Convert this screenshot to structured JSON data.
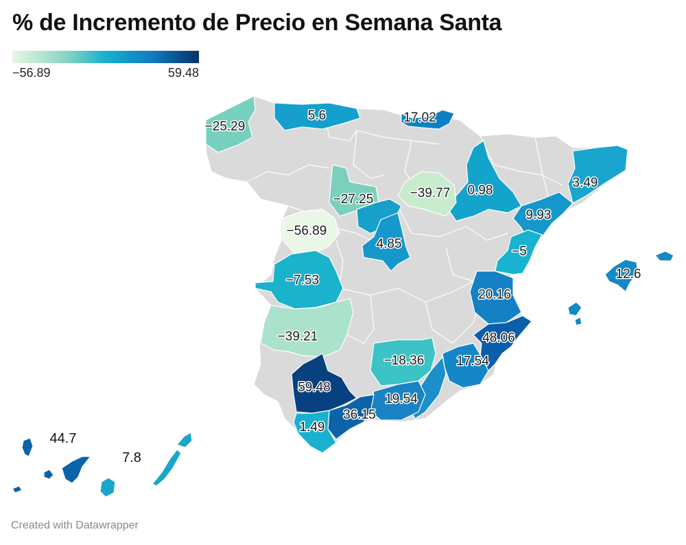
{
  "title": "% de Incremento de Precio en Semana Santa",
  "legend": {
    "min_label": "−56.89",
    "max_label": "59.48",
    "min": -56.89,
    "max": 59.48,
    "gradient": [
      "#e9f6e4",
      "#82d4c0",
      "#17b0cd",
      "#0f7cbf",
      "#08306b"
    ]
  },
  "footer": "Created with Datawrapper",
  "colors": {
    "no_data": "#dadada",
    "border": "#ffffff"
  },
  "regions": [
    {
      "id": "lugo-coruna",
      "label": "−25.29",
      "value": -25.29
    },
    {
      "id": "asturias",
      "label": "5.6",
      "value": 5.6
    },
    {
      "id": "gipuzkoa",
      "label": "17.02",
      "value": 17.02
    },
    {
      "id": "zaragoza",
      "label": "0.98",
      "value": 0.98
    },
    {
      "id": "barcelona",
      "label": "3.49",
      "value": 3.49
    },
    {
      "id": "tarragona",
      "label": "9.93",
      "value": 9.93
    },
    {
      "id": "leon-sur",
      "label": "−27.25",
      "value": -27.25
    },
    {
      "id": "soria",
      "label": "−39.77",
      "value": -39.77
    },
    {
      "id": "salamanca",
      "label": "−56.89",
      "value": -56.89
    },
    {
      "id": "madrid",
      "label": "4.85",
      "value": 4.85
    },
    {
      "id": "castellon",
      "label": "−5",
      "value": -5
    },
    {
      "id": "baleares",
      "label": "12.6",
      "value": 12.6
    },
    {
      "id": "caceres",
      "label": "−7.53",
      "value": -7.53
    },
    {
      "id": "valencia",
      "label": "20.16",
      "value": 20.16
    },
    {
      "id": "badajoz",
      "label": "−39.21",
      "value": -39.21
    },
    {
      "id": "alicante",
      "label": "48.06",
      "value": 48.06
    },
    {
      "id": "jaen",
      "label": "−18.36",
      "value": -18.36
    },
    {
      "id": "murcia",
      "label": "17.54",
      "value": 17.54
    },
    {
      "id": "sevilla",
      "label": "59.48",
      "value": 59.48
    },
    {
      "id": "granada",
      "label": "19.54",
      "value": 19.54
    },
    {
      "id": "malaga",
      "label": "36.15",
      "value": 36.15
    },
    {
      "id": "cadiz",
      "label": "1.49",
      "value": 1.49
    },
    {
      "id": "tenerife",
      "label": "44.7",
      "value": 44.7
    },
    {
      "id": "las-palmas",
      "label": "7.8",
      "value": 7.8
    }
  ]
}
